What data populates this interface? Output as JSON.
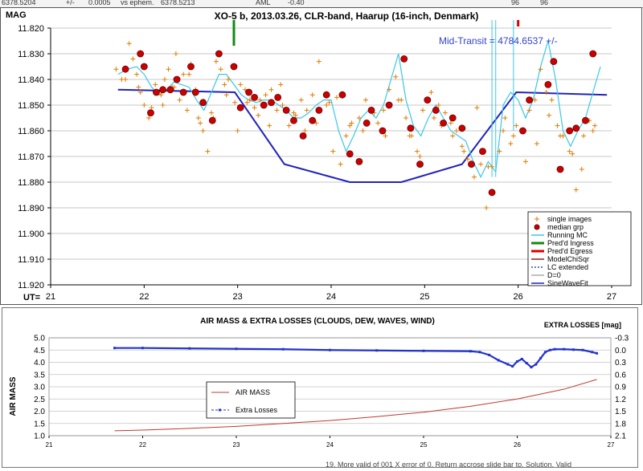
{
  "top_strip": [
    "6378.5204",
    "+/-",
    "0.0005",
    "vs ephem.",
    "6378.5213",
    "AML",
    "-0.40",
    "96",
    "96"
  ],
  "footer_partial_text": "19. More valid of 001 X error of 0. Return accrose slide bar to. Solution. Valid",
  "chart_data": [
    {
      "type": "scatter",
      "title": "XO-5 b, 2013.03.26,  CLR-band,  Haarup (16-inch,  Denmark)",
      "ylabel": "MAG",
      "xlabel": "UT=",
      "annotation": "Mid-Transit = 4784.6537  +/-",
      "xlim": [
        21,
        27
      ],
      "ylim": [
        11.82,
        11.92
      ],
      "y_inverted": true,
      "xticks": [
        "21",
        "22",
        "23",
        "24",
        "25",
        "26",
        "27"
      ],
      "yticks": [
        "11.820",
        "11.830",
        "11.840",
        "11.850",
        "11.860",
        "11.870",
        "11.880",
        "11.890",
        "11.900",
        "11.910",
        "11.920"
      ],
      "legend": {
        "placement": "bottom-right",
        "entries": [
          {
            "label": "single images",
            "marker": "plus",
            "color": "#e07b00"
          },
          {
            "label": "median grp",
            "marker": "dot",
            "color": "#cc0000"
          },
          {
            "label": "Running MC",
            "marker": "line",
            "color": "#38c8e8"
          },
          {
            "label": "Pred'd Ingress",
            "marker": "line",
            "color": "#108a10"
          },
          {
            "label": "Pred'd Egress",
            "marker": "line",
            "color": "#dd0000"
          },
          {
            "label": "ModelChiSqr",
            "marker": "line",
            "color": "#8b2222"
          },
          {
            "label": "LC extended",
            "marker": "dash",
            "color": "#3355aa"
          },
          {
            "label": "D=0",
            "marker": "line",
            "color": "#aaaaaa"
          },
          {
            "label": "SineWaveFit",
            "marker": "line",
            "color": "#2222bb"
          }
        ]
      },
      "colors": {
        "single_images": "#e07b00",
        "median_grp": "#cc0000",
        "running_mc": "#38c8e8",
        "model": "#2222bb",
        "ingress": "#108a10",
        "egress": "#dd0000"
      },
      "series": [
        {
          "name": "single images",
          "x": [
            21.7,
            21.76,
            21.84,
            21.88,
            21.92,
            21.96,
            22.0,
            22.05,
            22.12,
            22.18,
            22.22,
            22.26,
            22.3,
            22.34,
            22.38,
            22.42,
            22.46,
            22.5,
            22.55,
            22.6,
            22.63,
            22.68,
            22.72,
            22.77,
            22.82,
            22.86,
            22.9,
            22.97,
            23.03,
            23.08,
            23.13,
            23.18,
            23.24,
            23.3,
            23.36,
            23.42,
            23.48,
            23.55,
            23.62,
            23.68,
            23.74,
            23.8,
            23.87,
            23.95,
            24.02,
            24.1,
            24.16,
            24.22,
            24.3,
            24.37,
            24.43,
            24.5,
            24.56,
            24.62,
            24.69,
            24.75,
            24.8,
            24.86,
            24.92,
            24.98,
            25.04,
            25.1,
            25.15,
            25.22,
            25.28,
            25.34,
            25.4,
            25.46,
            25.53,
            25.6,
            25.66,
            25.72,
            25.8,
            25.86,
            25.92,
            25.98,
            26.05,
            26.12,
            26.18,
            26.24,
            26.3,
            26.36,
            26.42,
            26.48,
            26.55,
            26.62,
            26.7,
            26.76,
            26.82,
            21.8,
            21.94,
            22.08,
            22.2,
            22.32,
            22.48,
            22.58,
            22.74,
            22.88,
            23.0,
            23.1,
            23.22,
            23.34,
            23.46,
            23.6,
            23.72,
            23.84,
            23.98,
            24.06,
            24.2,
            24.34,
            24.46,
            24.58,
            24.72,
            24.84,
            24.95,
            25.07,
            25.18,
            25.3,
            25.42,
            25.56,
            25.68,
            25.84,
            25.95,
            26.08,
            26.2,
            26.33,
            26.45,
            26.58,
            26.68,
            26.8
          ],
          "y": [
            11.836,
            11.84,
            11.826,
            11.832,
            11.838,
            11.845,
            11.85,
            11.855,
            11.842,
            11.846,
            11.84,
            11.836,
            11.843,
            11.83,
            11.848,
            11.838,
            11.852,
            11.834,
            11.844,
            11.857,
            11.86,
            11.868,
            11.853,
            11.833,
            11.836,
            11.842,
            11.84,
            11.849,
            11.842,
            11.844,
            11.848,
            11.851,
            11.848,
            11.846,
            11.844,
            11.852,
            11.85,
            11.858,
            11.854,
            11.848,
            11.852,
            11.846,
            11.833,
            11.85,
            11.868,
            11.873,
            11.862,
            11.857,
            11.855,
            11.848,
            11.852,
            11.857,
            11.852,
            11.844,
            11.839,
            11.848,
            11.855,
            11.862,
            11.868,
            11.852,
            11.848,
            11.855,
            11.85,
            11.853,
            11.857,
            11.86,
            11.866,
            11.871,
            11.878,
            11.873,
            11.89,
            11.874,
            11.868,
            11.855,
            11.865,
            11.858,
            11.86,
            11.852,
            11.848,
            11.836,
            11.845,
            11.848,
            11.858,
            11.862,
            11.868,
            11.883,
            11.862,
            11.856,
            11.858,
            11.84,
            11.843,
            11.851,
            11.85,
            11.843,
            11.838,
            11.855,
            11.855,
            11.846,
            11.86,
            11.849,
            11.854,
            11.858,
            11.842,
            11.853,
            11.86,
            11.857,
            11.849,
            11.847,
            11.858,
            11.86,
            11.853,
            11.862,
            11.848,
            11.862,
            11.87,
            11.845,
            11.858,
            11.862,
            11.868,
            11.851,
            11.874,
            11.86,
            11.862,
            11.872,
            11.865,
            11.854,
            11.862,
            11.869,
            11.875,
            11.86
          ]
        },
        {
          "name": "median grp",
          "x": [
            21.8,
            21.96,
            22.0,
            22.07,
            22.13,
            22.2,
            22.28,
            22.35,
            22.42,
            22.5,
            22.55,
            22.63,
            22.73,
            22.8,
            22.96,
            23.03,
            23.12,
            23.18,
            23.28,
            23.36,
            23.43,
            23.52,
            23.6,
            23.7,
            23.8,
            23.87,
            23.95,
            24.12,
            24.2,
            24.3,
            24.38,
            24.43,
            24.55,
            24.62,
            24.78,
            24.85,
            24.95,
            25.03,
            25.12,
            25.2,
            25.3,
            25.4,
            25.5,
            25.62,
            25.72,
            26.05,
            26.12,
            26.32,
            26.38,
            26.45,
            26.55,
            26.62,
            26.72,
            26.8,
            27.0
          ],
          "y": [
            11.836,
            11.83,
            11.835,
            11.853,
            11.845,
            11.844,
            11.844,
            11.84,
            11.845,
            11.835,
            11.845,
            11.849,
            11.856,
            11.83,
            11.835,
            11.851,
            11.845,
            11.847,
            11.85,
            11.849,
            11.847,
            11.852,
            11.856,
            11.862,
            11.856,
            11.852,
            11.846,
            11.846,
            11.869,
            11.872,
            11.857,
            11.852,
            11.86,
            11.85,
            11.832,
            11.859,
            11.873,
            11.848,
            11.852,
            11.857,
            11.855,
            11.859,
            11.873,
            11.868,
            11.884,
            11.86,
            11.848,
            11.842,
            11.833,
            11.875,
            11.86,
            11.859,
            11.856,
            11.83,
            11.83
          ]
        },
        {
          "name": "Running MC",
          "x": [
            21.72,
            21.82,
            21.92,
            22.0,
            22.08,
            22.16,
            22.24,
            22.32,
            22.4,
            22.48,
            22.56,
            22.64,
            22.72,
            22.8,
            22.88,
            22.96,
            23.04,
            23.12,
            23.2,
            23.28,
            23.36,
            23.44,
            23.52,
            23.6,
            23.68,
            23.76,
            23.84,
            23.92,
            24.0,
            24.08,
            24.16,
            24.24,
            24.32,
            24.4,
            24.48,
            24.56,
            24.64,
            24.72,
            24.8,
            24.88,
            24.96,
            25.04,
            25.12,
            25.2,
            25.28,
            25.36,
            25.44,
            25.52,
            25.6,
            25.68,
            25.76,
            25.84,
            25.92,
            26.0,
            26.08,
            26.16,
            26.24,
            26.32,
            26.4,
            26.48,
            26.56,
            26.64,
            26.72,
            26.8,
            26.88
          ],
          "y": [
            11.838,
            11.836,
            11.835,
            11.838,
            11.843,
            11.846,
            11.844,
            11.841,
            11.842,
            11.843,
            11.848,
            11.852,
            11.845,
            11.838,
            11.838,
            11.842,
            11.846,
            11.848,
            11.849,
            11.848,
            11.848,
            11.85,
            11.852,
            11.855,
            11.855,
            11.853,
            11.85,
            11.848,
            11.848,
            11.86,
            11.868,
            11.862,
            11.855,
            11.852,
            11.855,
            11.85,
            11.84,
            11.83,
            11.848,
            11.858,
            11.862,
            11.855,
            11.85,
            11.855,
            11.86,
            11.862,
            11.864,
            11.872,
            11.878,
            11.872,
            11.876,
            11.85,
            11.845,
            11.848,
            11.855,
            11.848,
            11.835,
            11.825,
            11.84,
            11.86,
            11.866,
            11.86,
            11.855,
            11.845,
            11.835
          ]
        },
        {
          "name": "SineWaveFit",
          "x": [
            21.72,
            22.97,
            23.5,
            24.2,
            24.75,
            25.4,
            25.98,
            26.95
          ],
          "y": [
            11.844,
            11.845,
            11.873,
            11.88,
            11.88,
            11.873,
            11.845,
            11.846
          ]
        }
      ]
    },
    {
      "type": "line",
      "title": "AIR MASS & EXTRA LOSSES (CLOUDS, DEW, WAVES, WIND)",
      "ylabel": "AIR MASS",
      "y2label": "EXTRA LOSSES [mag]",
      "xlim": [
        21,
        27
      ],
      "ylim": [
        1.0,
        5.0
      ],
      "y2lim": [
        -0.3,
        2.1
      ],
      "y2_inverted": true,
      "xticks": [
        "21",
        "22",
        "23",
        "24",
        "25",
        "26",
        "27"
      ],
      "yticks": [
        "1.0",
        "1.5",
        "2.0",
        "2.5",
        "3.0",
        "3.5",
        "4.0",
        "4.5",
        "5.0"
      ],
      "y2ticks": [
        "-0.3",
        "0.0",
        "0.3",
        "0.6",
        "0.9",
        "1.2",
        "1.5",
        "1.8",
        "2.1"
      ],
      "legend": {
        "placement": "center-left",
        "entries": [
          {
            "label": "AIR MASS",
            "color": "#c0392b"
          },
          {
            "label": "Extra Losses",
            "color": "#2233cc"
          }
        ]
      },
      "series": [
        {
          "name": "AIR MASS",
          "axis": "left",
          "x": [
            21.7,
            22.0,
            22.5,
            23.0,
            23.5,
            24.0,
            24.5,
            25.0,
            25.5,
            26.0,
            26.5,
            26.85
          ],
          "y": [
            1.2,
            1.23,
            1.3,
            1.38,
            1.5,
            1.62,
            1.78,
            1.96,
            2.2,
            2.5,
            2.9,
            3.3
          ]
        },
        {
          "name": "Extra Losses",
          "axis": "right",
          "x": [
            21.7,
            22.0,
            22.5,
            23.0,
            23.5,
            24.0,
            24.5,
            25.0,
            25.5,
            25.6,
            25.7,
            25.8,
            25.9,
            25.95,
            26.0,
            26.05,
            26.1,
            26.15,
            26.2,
            26.25,
            26.3,
            26.35,
            26.4,
            26.5,
            26.6,
            26.7,
            26.8,
            26.85
          ],
          "y": [
            -0.05,
            -0.05,
            -0.04,
            -0.03,
            -0.02,
            0.0,
            0.01,
            0.02,
            0.03,
            0.05,
            0.12,
            0.25,
            0.35,
            0.4,
            0.28,
            0.22,
            0.32,
            0.42,
            0.35,
            0.2,
            0.05,
            0.0,
            -0.02,
            -0.02,
            -0.01,
            0.0,
            0.05,
            0.08
          ]
        }
      ]
    }
  ]
}
